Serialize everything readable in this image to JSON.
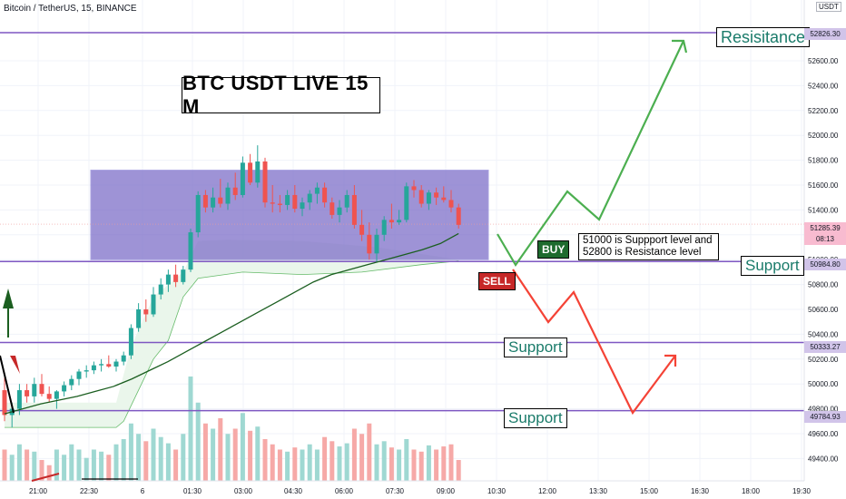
{
  "header": {
    "symbol": "Bitcoin / TetherUS, 15, BINANCE",
    "currency": "USDT"
  },
  "annotations": {
    "title": "BTC USDT LIVE 15 M",
    "note_line1": "51000 is Suppport level and",
    "note_line2": "52800 is Resistance level",
    "resistance_label": "Resisitance",
    "support_labels": [
      "Support",
      "Support",
      "Support"
    ],
    "buy_label": "BUY",
    "sell_label": "SELL"
  },
  "price_tags": {
    "resistance": "52826.30",
    "current": "51285.39",
    "countdown": "08:13",
    "support1": "50984.80",
    "support2": "50333.27",
    "support3": "49784.93"
  },
  "colors": {
    "up": "#26a69a",
    "down": "#ef5350",
    "level_line": "#7e57c2",
    "range_box": "#7e6fc9",
    "ma_line": "#1b5e20",
    "buy_path": "#4caf50",
    "sell_path": "#f44336",
    "buy_bg": "#1e6b2e",
    "sell_bg": "#c62828"
  },
  "chart_data": {
    "type": "candlestick",
    "ylim": [
      49300,
      53000
    ],
    "y_ticks": [
      52600,
      52400,
      52200,
      52000,
      51800,
      51600,
      51400,
      51200,
      51000,
      50800,
      50600,
      50400,
      50200,
      50000,
      49800,
      49600,
      49400
    ],
    "x_ticks": [
      "21:00",
      "22:30",
      "6",
      "01:30",
      "03:00",
      "04:30",
      "06:00",
      "07:30",
      "09:00",
      "10:30",
      "12:00",
      "13:30",
      "15:00",
      "16:30",
      "18:00",
      "19:30"
    ],
    "levels": {
      "resistance": 52826.3,
      "support": [
        50984.8,
        50333.27,
        49784.93
      ]
    },
    "range_box": {
      "low": 51000,
      "high": 51720
    },
    "candles": [
      [
        49950,
        50050,
        49700,
        49750
      ],
      [
        49750,
        49850,
        49650,
        49800
      ],
      [
        49800,
        50000,
        49750,
        49950
      ],
      [
        49950,
        50000,
        49850,
        49900
      ],
      [
        49900,
        50050,
        49850,
        50000
      ],
      [
        50000,
        50080,
        49900,
        49920
      ],
      [
        49920,
        49980,
        49850,
        49880
      ],
      [
        49880,
        49950,
        49800,
        49940
      ],
      [
        49940,
        50020,
        49900,
        49990
      ],
      [
        49990,
        50070,
        49950,
        50040
      ],
      [
        50040,
        50120,
        49990,
        50100
      ],
      [
        50100,
        50150,
        50050,
        50110
      ],
      [
        50110,
        50180,
        50080,
        50150
      ],
      [
        50150,
        50200,
        50100,
        50160
      ],
      [
        50160,
        50230,
        50130,
        50140
      ],
      [
        50140,
        50200,
        50100,
        50180
      ],
      [
        50180,
        50260,
        50150,
        50230
      ],
      [
        50230,
        50480,
        50200,
        50450
      ],
      [
        50450,
        50650,
        50420,
        50600
      ],
      [
        50600,
        50680,
        50500,
        50560
      ],
      [
        50560,
        50780,
        50540,
        50720
      ],
      [
        50720,
        50850,
        50680,
        50800
      ],
      [
        50800,
        50920,
        50740,
        50880
      ],
      [
        50880,
        50960,
        50780,
        50820
      ],
      [
        50820,
        50950,
        50800,
        50920
      ],
      [
        50920,
        51250,
        50900,
        51220
      ],
      [
        51220,
        51550,
        51180,
        51520
      ],
      [
        51520,
        51560,
        51380,
        51420
      ],
      [
        51420,
        51580,
        51380,
        51500
      ],
      [
        51500,
        51650,
        51420,
        51450
      ],
      [
        51450,
        51620,
        51400,
        51580
      ],
      [
        51580,
        51700,
        51480,
        51520
      ],
      [
        51520,
        51830,
        51500,
        51780
      ],
      [
        51780,
        51850,
        51600,
        51620
      ],
      [
        51620,
        51920,
        51580,
        51790
      ],
      [
        51790,
        51820,
        51420,
        51460
      ],
      [
        51460,
        51600,
        51380,
        51450
      ],
      [
        51450,
        51520,
        51380,
        51440
      ],
      [
        51440,
        51560,
        51400,
        51520
      ],
      [
        51520,
        51600,
        51380,
        51410
      ],
      [
        51410,
        51500,
        51350,
        51460
      ],
      [
        51460,
        51560,
        51400,
        51530
      ],
      [
        51530,
        51620,
        51450,
        51580
      ],
      [
        51580,
        51620,
        51420,
        51460
      ],
      [
        51460,
        51500,
        51330,
        51360
      ],
      [
        51360,
        51480,
        51300,
        51420
      ],
      [
        51420,
        51560,
        51380,
        51520
      ],
      [
        51520,
        51600,
        51250,
        51280
      ],
      [
        51280,
        51400,
        51150,
        51200
      ],
      [
        51200,
        51300,
        51000,
        51050
      ],
      [
        51050,
        51250,
        50980,
        51200
      ],
      [
        51200,
        51350,
        51150,
        51320
      ],
      [
        51320,
        51450,
        51250,
        51300
      ],
      [
        51300,
        51400,
        51280,
        51320
      ],
      [
        51320,
        51620,
        51300,
        51590
      ],
      [
        51590,
        51640,
        51500,
        51560
      ],
      [
        51560,
        51600,
        51420,
        51450
      ],
      [
        51450,
        51560,
        51400,
        51540
      ],
      [
        51540,
        51580,
        51440,
        51500
      ],
      [
        51500,
        51590,
        51460,
        51480
      ],
      [
        51480,
        51560,
        51380,
        51420
      ],
      [
        51420,
        51450,
        51250,
        51280
      ]
    ],
    "ma_line": [
      49760,
      49800,
      49840,
      49870,
      49900,
      49940,
      49980,
      50040,
      50110,
      50180,
      50260,
      50340,
      50420,
      50500,
      50580,
      50660,
      50740,
      50820,
      50880,
      50920,
      50960,
      51000,
      51040,
      51080,
      51130,
      51210
    ],
    "volume_rel": [
      0.3,
      0.25,
      0.35,
      0.3,
      0.28,
      0.2,
      0.15,
      0.3,
      0.25,
      0.35,
      0.3,
      0.22,
      0.3,
      0.28,
      0.25,
      0.35,
      0.4,
      0.55,
      0.45,
      0.38,
      0.5,
      0.42,
      0.36,
      0.3,
      0.45,
      1.0,
      0.75,
      0.55,
      0.5,
      0.6,
      0.45,
      0.5,
      0.65,
      0.48,
      0.52,
      0.4,
      0.35,
      0.3,
      0.28,
      0.32,
      0.3,
      0.35,
      0.3,
      0.42,
      0.38,
      0.33,
      0.36,
      0.5,
      0.45,
      0.55,
      0.35,
      0.38,
      0.32,
      0.3,
      0.4,
      0.3,
      0.28,
      0.34,
      0.3,
      0.33,
      0.35,
      0.2
    ]
  }
}
